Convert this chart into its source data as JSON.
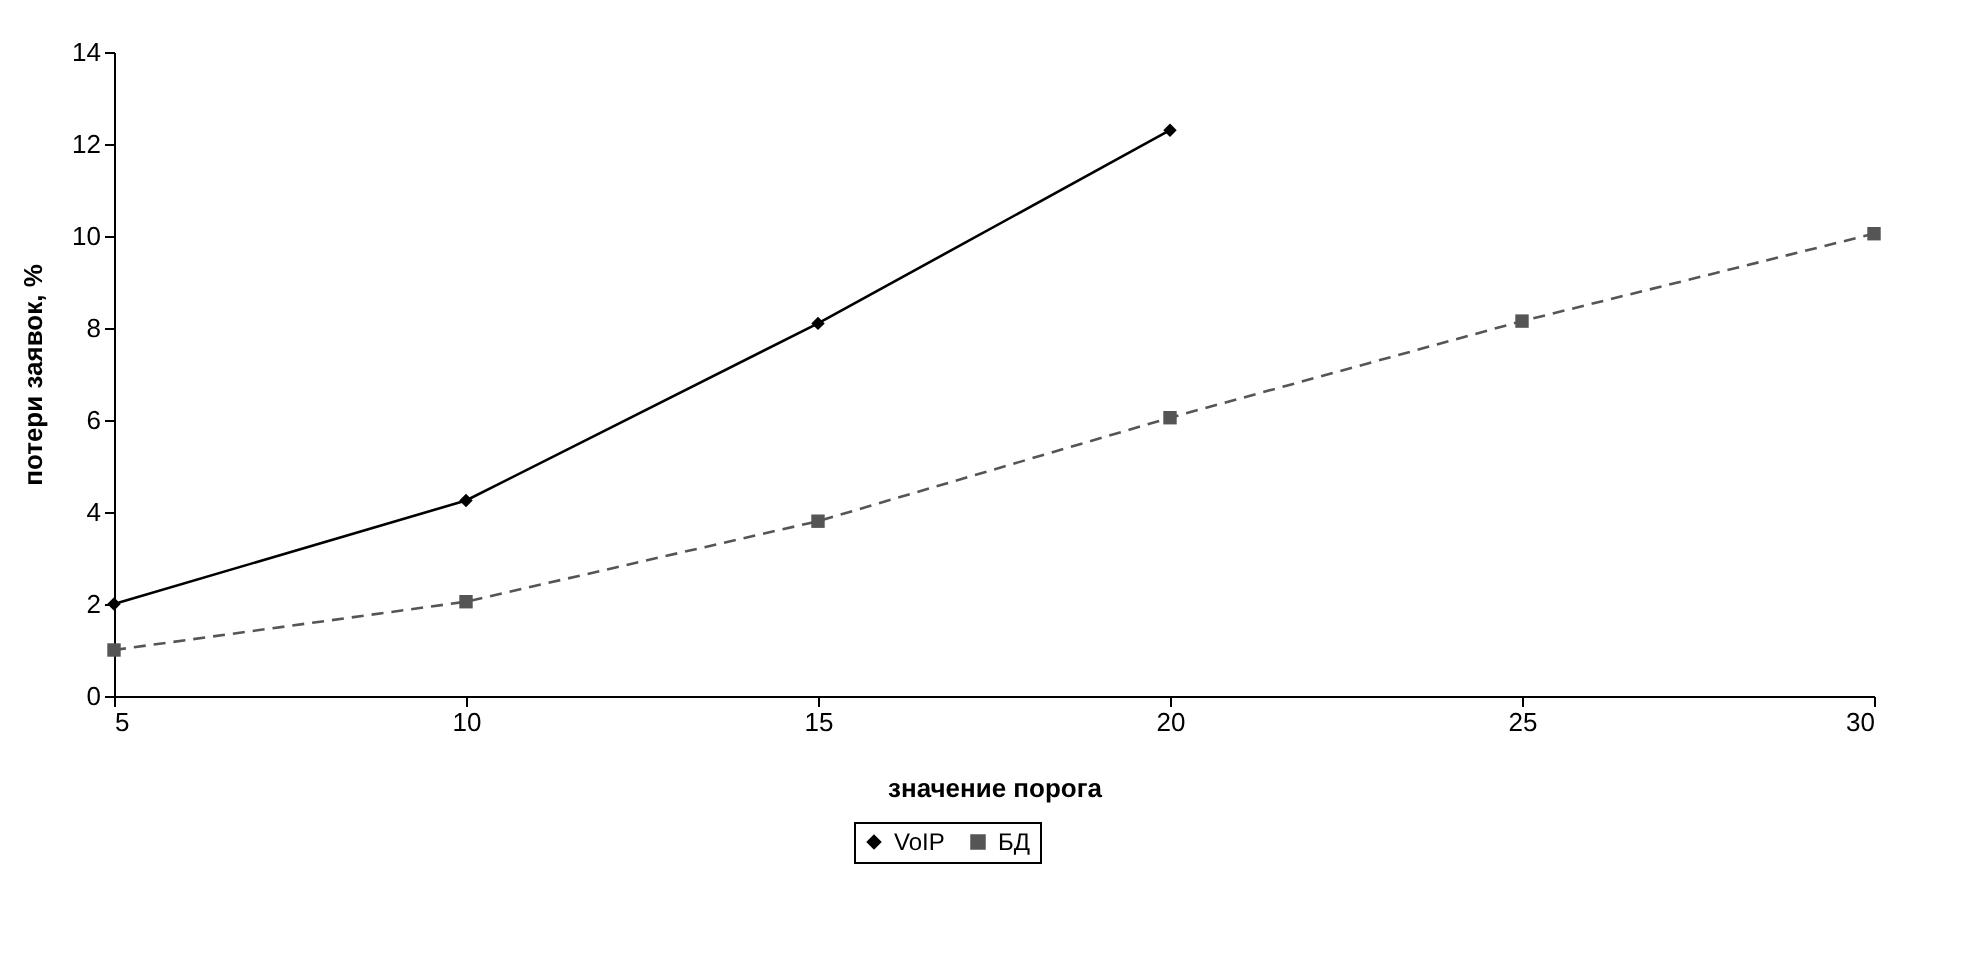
{
  "chart_data": {
    "type": "line",
    "xlabel": "значение порога",
    "ylabel": "потери заявок, %",
    "xlim": [
      5,
      30
    ],
    "xticks": [
      5,
      10,
      15,
      20,
      25,
      30
    ],
    "ylim": [
      0,
      14
    ],
    "yticks": [
      0,
      2,
      4,
      6,
      8,
      10,
      12,
      14
    ],
    "grid": false,
    "legend": "bottom",
    "series": [
      {
        "name": "VoIP",
        "color": "#000000",
        "marker": "diamond",
        "line_style": "solid",
        "x": [
          5,
          10,
          15,
          20
        ],
        "values": [
          2.0,
          4.25,
          8.1,
          12.3
        ]
      },
      {
        "name": "БД",
        "color": "#555555",
        "marker": "square",
        "line_style": "dashed",
        "x": [
          5,
          10,
          15,
          20,
          25,
          30
        ],
        "values": [
          1.0,
          2.05,
          3.8,
          6.05,
          8.15,
          10.05
        ]
      }
    ]
  }
}
